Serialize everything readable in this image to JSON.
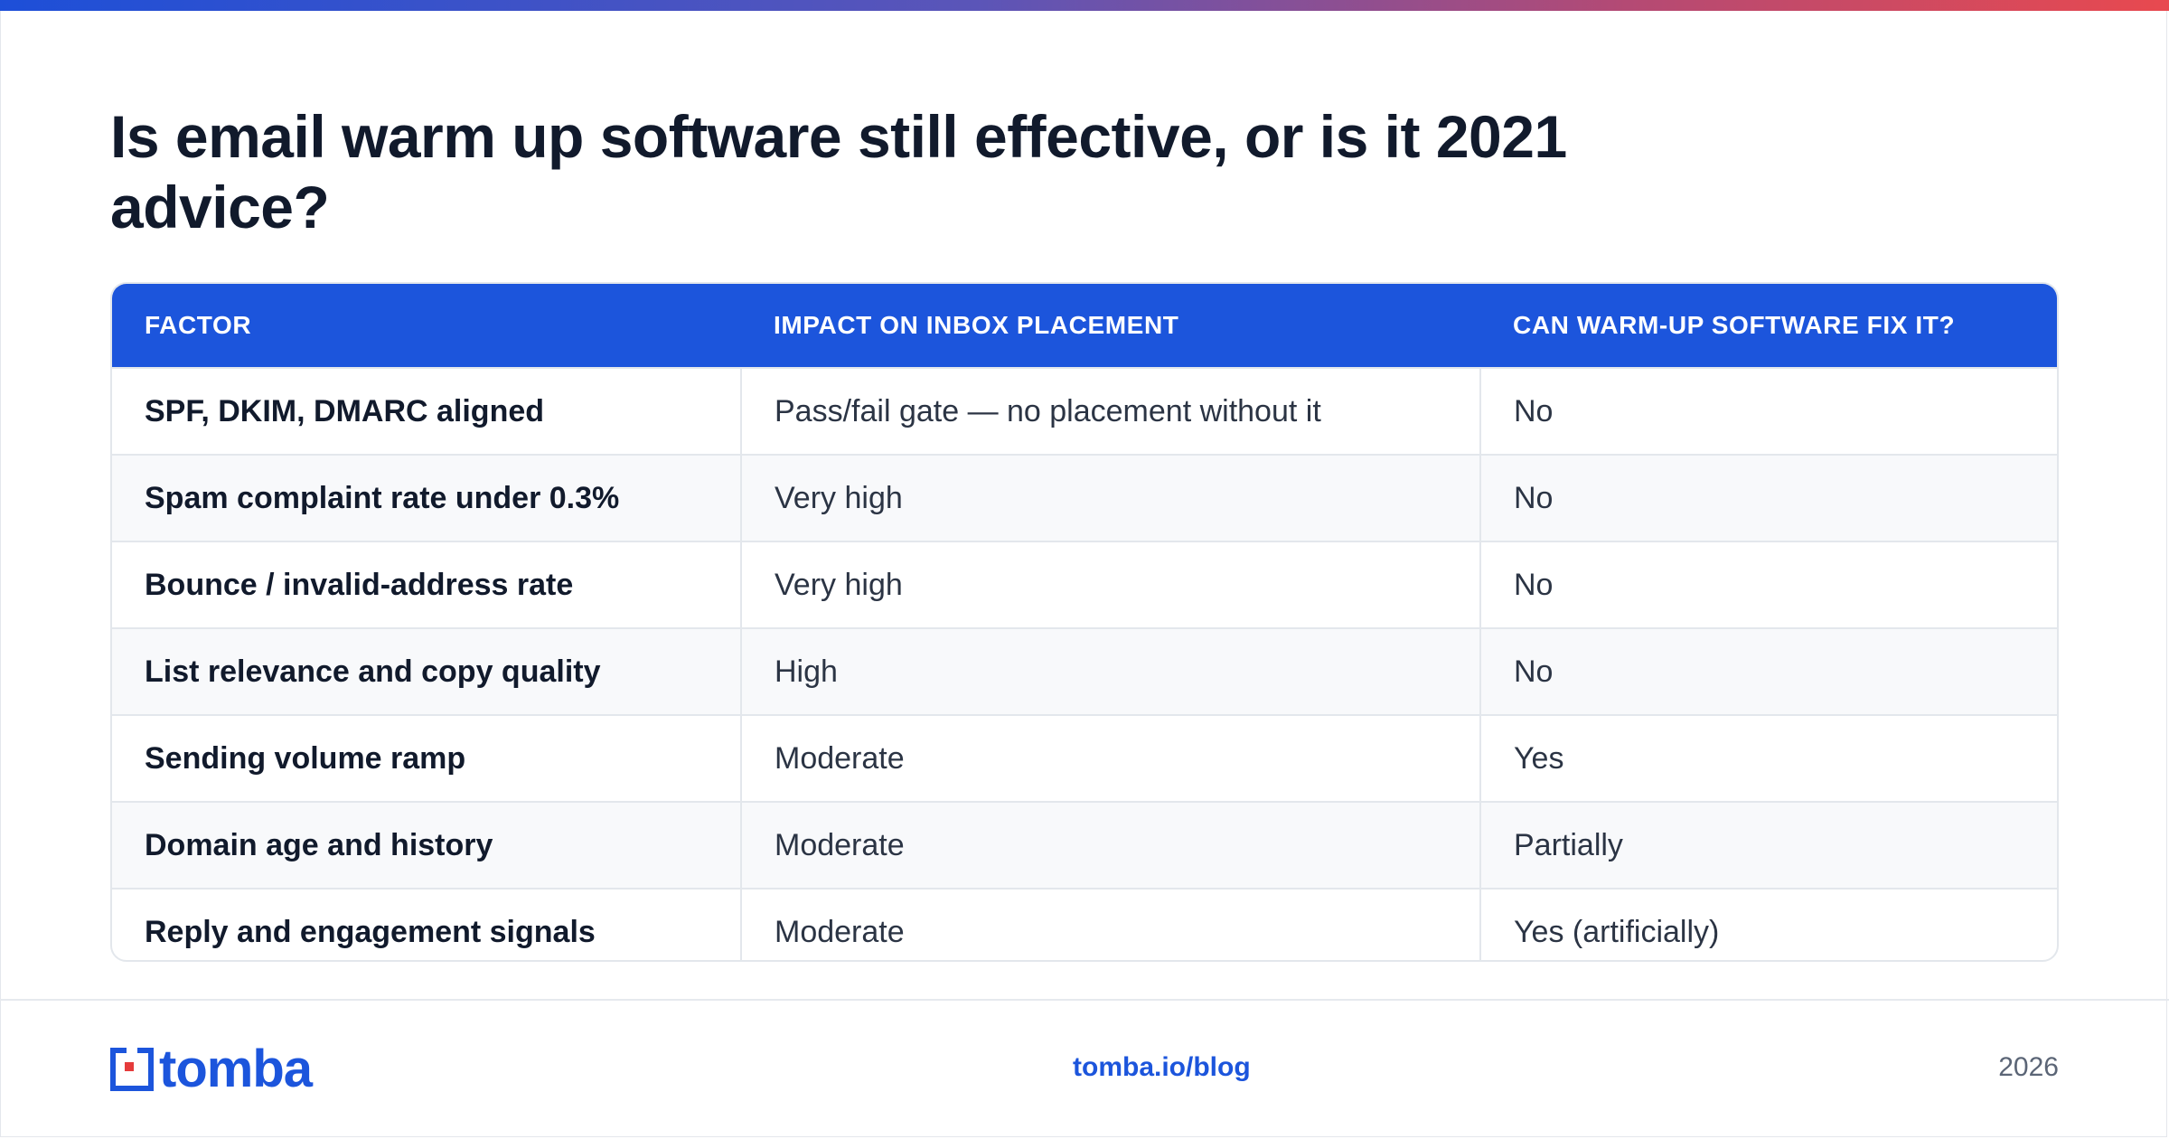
{
  "title": "Is email warm up software still effective, or is it 2021 advice?",
  "table": {
    "headers": [
      "FACTOR",
      "IMPACT ON INBOX PLACEMENT",
      "CAN WARM-UP SOFTWARE FIX IT?"
    ],
    "rows": [
      [
        "SPF, DKIM, DMARC aligned",
        "Pass/fail gate — no placement without it",
        "No"
      ],
      [
        "Spam complaint rate under 0.3%",
        "Very high",
        "No"
      ],
      [
        "Bounce / invalid-address rate",
        "Very high",
        "No"
      ],
      [
        "List relevance and copy quality",
        "High",
        "No"
      ],
      [
        "Sending volume ramp",
        "Moderate",
        "Yes"
      ],
      [
        "Domain age and history",
        "Moderate",
        "Partially"
      ],
      [
        "Reply and engagement signals",
        "Moderate",
        "Yes (artificially)"
      ]
    ]
  },
  "footer": {
    "logo_text": "tomba",
    "logo_icon": "tomba-logo-icon",
    "link": "tomba.io/blog",
    "year": "2026"
  },
  "colors": {
    "accent": "#1c55dc",
    "gradient_start": "#1d4fd8",
    "gradient_end": "#e8494f",
    "logo_red": "#e53b3b"
  }
}
